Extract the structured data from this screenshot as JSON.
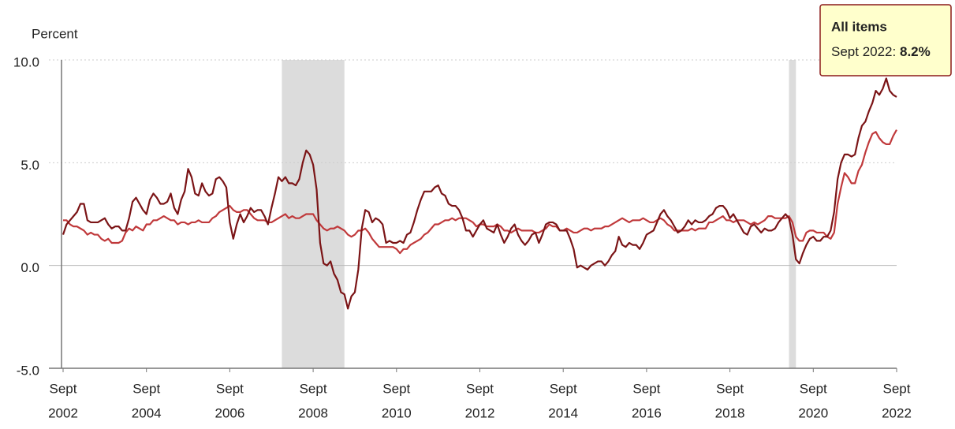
{
  "chart_data": {
    "type": "line",
    "y_label": "Percent",
    "xlim": [
      "2002-09",
      "2022-09"
    ],
    "xticks": [
      {
        "value": "2002-09",
        "label": [
          "Sept",
          "2002"
        ]
      },
      {
        "value": "2004-09",
        "label": [
          "Sept",
          "2004"
        ]
      },
      {
        "value": "2006-09",
        "label": [
          "Sept",
          "2006"
        ]
      },
      {
        "value": "2008-09",
        "label": [
          "Sept",
          "2008"
        ]
      },
      {
        "value": "2010-09",
        "label": [
          "Sept",
          "2010"
        ]
      },
      {
        "value": "2012-09",
        "label": [
          "Sept",
          "2012"
        ]
      },
      {
        "value": "2014-09",
        "label": [
          "Sept",
          "2014"
        ]
      },
      {
        "value": "2016-09",
        "label": [
          "Sept",
          "2016"
        ]
      },
      {
        "value": "2018-09",
        "label": [
          "Sept",
          "2018"
        ]
      },
      {
        "value": "2020-09",
        "label": [
          "Sept",
          "2020"
        ]
      },
      {
        "value": "2022-09",
        "label": [
          "Sept",
          "2022"
        ]
      }
    ],
    "ylim": [
      -5,
      10
    ],
    "yticks": [
      {
        "value": -5,
        "label": "-5.0"
      },
      {
        "value": 0,
        "label": "0.0"
      },
      {
        "value": 5,
        "label": "5.0"
      },
      {
        "value": 10,
        "label": "10.0"
      }
    ],
    "grid": true,
    "shaded_regions": [
      {
        "start": "2007-12",
        "end": "2009-06",
        "color": "#dcdcdc"
      },
      {
        "start": "2020-02",
        "end": "2020-04",
        "color": "#dcdcdc"
      }
    ],
    "x": [
      "2002-09",
      "2002-10",
      "2002-11",
      "2002-12",
      "2003-01",
      "2003-02",
      "2003-03",
      "2003-04",
      "2003-05",
      "2003-06",
      "2003-07",
      "2003-08",
      "2003-09",
      "2003-10",
      "2003-11",
      "2003-12",
      "2004-01",
      "2004-02",
      "2004-03",
      "2004-04",
      "2004-05",
      "2004-06",
      "2004-07",
      "2004-08",
      "2004-09",
      "2004-10",
      "2004-11",
      "2004-12",
      "2005-01",
      "2005-02",
      "2005-03",
      "2005-04",
      "2005-05",
      "2005-06",
      "2005-07",
      "2005-08",
      "2005-09",
      "2005-10",
      "2005-11",
      "2005-12",
      "2006-01",
      "2006-02",
      "2006-03",
      "2006-04",
      "2006-05",
      "2006-06",
      "2006-07",
      "2006-08",
      "2006-09",
      "2006-10",
      "2006-11",
      "2006-12",
      "2007-01",
      "2007-02",
      "2007-03",
      "2007-04",
      "2007-05",
      "2007-06",
      "2007-07",
      "2007-08",
      "2007-09",
      "2007-10",
      "2007-11",
      "2007-12",
      "2008-01",
      "2008-02",
      "2008-03",
      "2008-04",
      "2008-05",
      "2008-06",
      "2008-07",
      "2008-08",
      "2008-09",
      "2008-10",
      "2008-11",
      "2008-12",
      "2009-01",
      "2009-02",
      "2009-03",
      "2009-04",
      "2009-05",
      "2009-06",
      "2009-07",
      "2009-08",
      "2009-09",
      "2009-10",
      "2009-11",
      "2009-12",
      "2010-01",
      "2010-02",
      "2010-03",
      "2010-04",
      "2010-05",
      "2010-06",
      "2010-07",
      "2010-08",
      "2010-09",
      "2010-10",
      "2010-11",
      "2010-12",
      "2011-01",
      "2011-02",
      "2011-03",
      "2011-04",
      "2011-05",
      "2011-06",
      "2011-07",
      "2011-08",
      "2011-09",
      "2011-10",
      "2011-11",
      "2011-12",
      "2012-01",
      "2012-02",
      "2012-03",
      "2012-04",
      "2012-05",
      "2012-06",
      "2012-07",
      "2012-08",
      "2012-09",
      "2012-10",
      "2012-11",
      "2012-12",
      "2013-01",
      "2013-02",
      "2013-03",
      "2013-04",
      "2013-05",
      "2013-06",
      "2013-07",
      "2013-08",
      "2013-09",
      "2013-10",
      "2013-11",
      "2013-12",
      "2014-01",
      "2014-02",
      "2014-03",
      "2014-04",
      "2014-05",
      "2014-06",
      "2014-07",
      "2014-08",
      "2014-09",
      "2014-10",
      "2014-11",
      "2014-12",
      "2015-01",
      "2015-02",
      "2015-03",
      "2015-04",
      "2015-05",
      "2015-06",
      "2015-07",
      "2015-08",
      "2015-09",
      "2015-10",
      "2015-11",
      "2015-12",
      "2016-01",
      "2016-02",
      "2016-03",
      "2016-04",
      "2016-05",
      "2016-06",
      "2016-07",
      "2016-08",
      "2016-09",
      "2016-10",
      "2016-11",
      "2016-12",
      "2017-01",
      "2017-02",
      "2017-03",
      "2017-04",
      "2017-05",
      "2017-06",
      "2017-07",
      "2017-08",
      "2017-09",
      "2017-10",
      "2017-11",
      "2017-12",
      "2018-01",
      "2018-02",
      "2018-03",
      "2018-04",
      "2018-05",
      "2018-06",
      "2018-07",
      "2018-08",
      "2018-09",
      "2018-10",
      "2018-11",
      "2018-12",
      "2019-01",
      "2019-02",
      "2019-03",
      "2019-04",
      "2019-05",
      "2019-06",
      "2019-07",
      "2019-08",
      "2019-09",
      "2019-10",
      "2019-11",
      "2019-12",
      "2020-01",
      "2020-02",
      "2020-03",
      "2020-04",
      "2020-05",
      "2020-06",
      "2020-07",
      "2020-08",
      "2020-09",
      "2020-10",
      "2020-11",
      "2020-12",
      "2021-01",
      "2021-02",
      "2021-03",
      "2021-04",
      "2021-05",
      "2021-06",
      "2021-07",
      "2021-08",
      "2021-09",
      "2021-10",
      "2021-11",
      "2021-12",
      "2022-01",
      "2022-02",
      "2022-03",
      "2022-04",
      "2022-05",
      "2022-06",
      "2022-07",
      "2022-08",
      "2022-09"
    ],
    "series": [
      {
        "name": "All items",
        "color": "#7b1416",
        "values": [
          1.5,
          2.0,
          2.2,
          2.4,
          2.6,
          3.0,
          3.0,
          2.2,
          2.1,
          2.1,
          2.1,
          2.2,
          2.3,
          2.0,
          1.8,
          1.9,
          1.9,
          1.7,
          1.7,
          2.3,
          3.1,
          3.3,
          3.0,
          2.7,
          2.5,
          3.2,
          3.5,
          3.3,
          3.0,
          3.0,
          3.1,
          3.5,
          2.8,
          2.5,
          3.2,
          3.6,
          4.7,
          4.3,
          3.5,
          3.4,
          4.0,
          3.6,
          3.4,
          3.5,
          4.2,
          4.3,
          4.1,
          3.8,
          2.1,
          1.3,
          2.0,
          2.5,
          2.1,
          2.4,
          2.8,
          2.6,
          2.7,
          2.7,
          2.4,
          2.0,
          2.8,
          3.5,
          4.3,
          4.1,
          4.3,
          4.0,
          4.0,
          3.9,
          4.2,
          5.0,
          5.6,
          5.4,
          4.9,
          3.7,
          1.1,
          0.1,
          0.0,
          0.2,
          -0.4,
          -0.7,
          -1.3,
          -1.4,
          -2.1,
          -1.5,
          -1.3,
          -0.2,
          1.8,
          2.7,
          2.6,
          2.1,
          2.3,
          2.2,
          2.0,
          1.1,
          1.2,
          1.1,
          1.1,
          1.2,
          1.1,
          1.5,
          1.6,
          2.1,
          2.7,
          3.2,
          3.6,
          3.6,
          3.6,
          3.8,
          3.9,
          3.5,
          3.4,
          3.0,
          2.9,
          2.9,
          2.7,
          2.3,
          1.7,
          1.7,
          1.4,
          1.7,
          2.0,
          2.2,
          1.8,
          1.7,
          1.6,
          2.0,
          1.5,
          1.1,
          1.4,
          1.8,
          2.0,
          1.5,
          1.2,
          1.0,
          1.2,
          1.5,
          1.6,
          1.1,
          1.5,
          2.0,
          2.1,
          2.1,
          2.0,
          1.7,
          1.7,
          1.7,
          1.3,
          0.8,
          -0.1,
          0.0,
          -0.1,
          -0.2,
          0.0,
          0.1,
          0.2,
          0.2,
          0.0,
          0.2,
          0.5,
          0.7,
          1.4,
          1.0,
          0.9,
          1.1,
          1.0,
          1.0,
          0.8,
          1.1,
          1.5,
          1.6,
          1.7,
          2.1,
          2.5,
          2.7,
          2.4,
          2.2,
          1.9,
          1.6,
          1.7,
          1.9,
          2.2,
          2.0,
          2.2,
          2.1,
          2.1,
          2.2,
          2.4,
          2.5,
          2.8,
          2.9,
          2.9,
          2.7,
          2.3,
          2.5,
          2.2,
          1.9,
          1.6,
          1.5,
          1.9,
          2.0,
          1.8,
          1.6,
          1.8,
          1.7,
          1.7,
          1.8,
          2.1,
          2.3,
          2.5,
          2.3,
          1.5,
          0.3,
          0.1,
          0.6,
          1.0,
          1.3,
          1.4,
          1.2,
          1.2,
          1.4,
          1.4,
          1.7,
          2.6,
          4.2,
          5.0,
          5.4,
          5.4,
          5.3,
          5.4,
          6.2,
          6.8,
          7.0,
          7.5,
          7.9,
          8.5,
          8.3,
          8.6,
          9.1,
          8.5,
          8.3,
          8.2
        ]
      },
      {
        "color": "#c0393b",
        "values": [
          2.2,
          2.2,
          2.0,
          1.9,
          1.9,
          1.8,
          1.7,
          1.5,
          1.6,
          1.5,
          1.5,
          1.3,
          1.2,
          1.3,
          1.1,
          1.1,
          1.1,
          1.2,
          1.6,
          1.8,
          1.7,
          1.9,
          1.8,
          1.7,
          2.0,
          2.0,
          2.2,
          2.2,
          2.3,
          2.4,
          2.3,
          2.2,
          2.2,
          2.0,
          2.1,
          2.1,
          2.0,
          2.1,
          2.1,
          2.2,
          2.1,
          2.1,
          2.1,
          2.3,
          2.4,
          2.6,
          2.7,
          2.8,
          2.9,
          2.7,
          2.6,
          2.6,
          2.7,
          2.7,
          2.5,
          2.3,
          2.2,
          2.2,
          2.2,
          2.1,
          2.1,
          2.2,
          2.3,
          2.4,
          2.5,
          2.3,
          2.4,
          2.3,
          2.3,
          2.4,
          2.5,
          2.5,
          2.5,
          2.2,
          2.0,
          1.8,
          1.7,
          1.8,
          1.8,
          1.9,
          1.8,
          1.7,
          1.5,
          1.4,
          1.5,
          1.7,
          1.7,
          1.8,
          1.6,
          1.3,
          1.1,
          0.9,
          0.9,
          0.9,
          0.9,
          0.9,
          0.8,
          0.6,
          0.8,
          0.8,
          1.0,
          1.1,
          1.2,
          1.3,
          1.5,
          1.6,
          1.8,
          2.0,
          2.0,
          2.1,
          2.2,
          2.2,
          2.3,
          2.2,
          2.3,
          2.3,
          2.3,
          2.2,
          2.1,
          1.9,
          2.0,
          2.0,
          1.9,
          1.9,
          1.9,
          2.0,
          1.9,
          1.7,
          1.7,
          1.6,
          1.7,
          1.8,
          1.7,
          1.7,
          1.7,
          1.7,
          1.6,
          1.6,
          1.7,
          1.8,
          2.0,
          1.9,
          1.9,
          1.7,
          1.7,
          1.8,
          1.7,
          1.6,
          1.6,
          1.7,
          1.8,
          1.8,
          1.7,
          1.8,
          1.8,
          1.8,
          1.9,
          1.9,
          2.0,
          2.1,
          2.2,
          2.3,
          2.2,
          2.1,
          2.2,
          2.2,
          2.2,
          2.3,
          2.2,
          2.1,
          2.1,
          2.2,
          2.3,
          2.2,
          2.0,
          1.9,
          1.7,
          1.7,
          1.7,
          1.7,
          1.7,
          1.8,
          1.7,
          1.8,
          1.8,
          1.8,
          2.1,
          2.1,
          2.2,
          2.3,
          2.4,
          2.2,
          2.2,
          2.1,
          2.2,
          2.2,
          2.2,
          2.1,
          2.0,
          2.1,
          2.0,
          2.1,
          2.2,
          2.4,
          2.4,
          2.3,
          2.3,
          2.3,
          2.3,
          2.4,
          2.1,
          1.4,
          1.2,
          1.2,
          1.6,
          1.7,
          1.7,
          1.6,
          1.6,
          1.6,
          1.4,
          1.3,
          1.6,
          3.0,
          3.8,
          4.5,
          4.3,
          4.0,
          4.0,
          4.6,
          4.9,
          5.5,
          6.0,
          6.4,
          6.5,
          6.2,
          6.0,
          5.9,
          5.9,
          6.3,
          6.6
        ]
      }
    ],
    "tooltip": {
      "title": "All items",
      "date": "Sept 2022:",
      "value_label": "8.2%"
    }
  }
}
